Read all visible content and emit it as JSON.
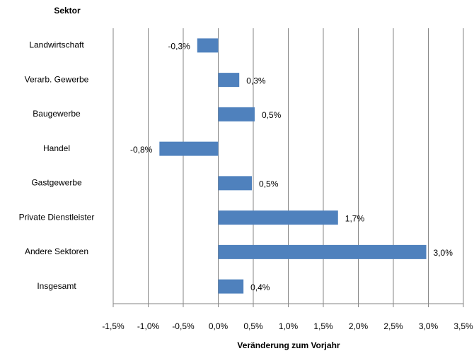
{
  "chart_data": {
    "type": "barh",
    "title": "Sektor",
    "xlabel": "Veränderung zum Vorjahr",
    "categories": [
      "Landwirtschaft",
      "Verarb. Gewerbe",
      "Baugewerbe",
      "Handel",
      "Gastgewerbe",
      "Private Dienstleister",
      "Andere Sektoren",
      "Insgesamt"
    ],
    "values": [
      -0.3,
      0.3,
      0.52,
      -0.84,
      0.48,
      1.71,
      2.97,
      0.36
    ],
    "value_labels": [
      "-0,3%",
      "0,3%",
      "0,5%",
      "-0,8%",
      "0,5%",
      "1,7%",
      "3,0%",
      "0,4%"
    ],
    "color": "#4f81bd",
    "xlim": [
      -1.5,
      3.5
    ],
    "xticks": [
      {
        "value": -1.5,
        "label": "-1,5%"
      },
      {
        "value": -1.0,
        "label": "-1,0%"
      },
      {
        "value": -0.5,
        "label": "-0,5%"
      },
      {
        "value": 0,
        "label": "0,0%"
      },
      {
        "value": 0.5,
        "label": "0,5%"
      },
      {
        "value": 1.0,
        "label": "1,0%"
      },
      {
        "value": 1.5,
        "label": "1,5%"
      },
      {
        "value": 2.0,
        "label": "2,0%"
      },
      {
        "value": 2.5,
        "label": "2,5%"
      },
      {
        "value": 3.0,
        "label": "3,0%"
      },
      {
        "value": 3.5,
        "label": "3,5%"
      }
    ],
    "grid": true
  }
}
